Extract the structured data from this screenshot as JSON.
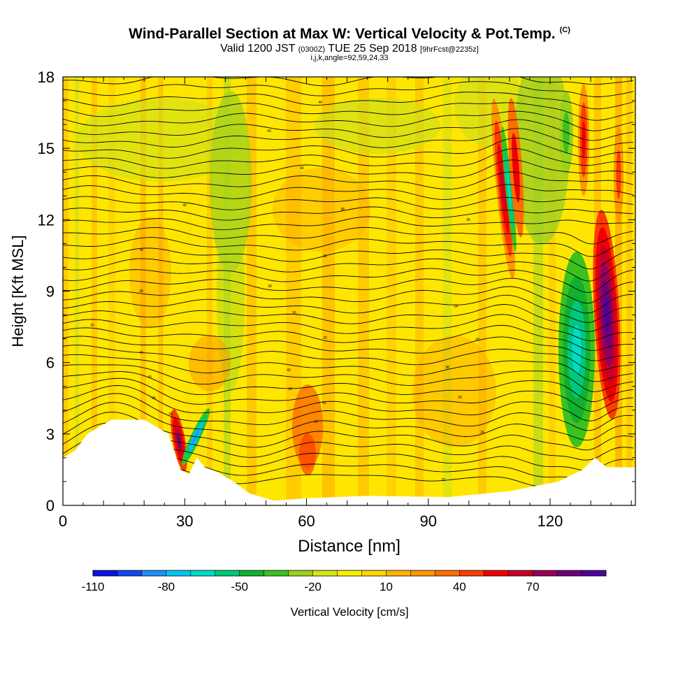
{
  "title": "Wind-Parallel Section at Max W: Vertical Velocity & Pot.Temp.",
  "title_mark": "(C)",
  "subtitle_main": "Valid 1200 JST",
  "subtitle_z": "(0300Z)",
  "subtitle_date": "TUE 25 Sep 2018",
  "subtitle_fcst": "[9hrFcst@2235z]",
  "subtitle2": "i,j,k,angle=92,59,24,33",
  "chart_data": {
    "type": "heatmap",
    "xlabel": "Distance [nm]",
    "ylabel": "Height [Kft MSL]",
    "xlim": [
      0,
      141
    ],
    "ylim": [
      0,
      18
    ],
    "x_ticks": [
      "0",
      "30",
      "60",
      "90",
      "120"
    ],
    "x_tick_values": [
      0,
      30,
      60,
      90,
      120
    ],
    "y_ticks": [
      "0",
      "3",
      "6",
      "9",
      "12",
      "15",
      "18"
    ],
    "y_tick_values": [
      0,
      3,
      6,
      9,
      12,
      15,
      18
    ],
    "colorbar_label": "Vertical Velocity [cm/s]",
    "colorbar_ticks": [
      "-110",
      "-80",
      "-50",
      "-20",
      "10",
      "40",
      "70"
    ],
    "colorbar_colors": [
      "#0a12e6",
      "#1447f0",
      "#1e90ff",
      "#00c8f0",
      "#00dcc8",
      "#00c87e",
      "#10b030",
      "#3cc21e",
      "#9bd21a",
      "#d4e614",
      "#fff000",
      "#ffd700",
      "#ffb400",
      "#ff9600",
      "#ff6e00",
      "#ff3c00",
      "#f00000",
      "#c80028",
      "#96005a",
      "#6e0078",
      "#50009b"
    ],
    "terrain_kft": [
      [
        0,
        2
      ],
      [
        3,
        2.3
      ],
      [
        6,
        3
      ],
      [
        12,
        3.6
      ],
      [
        20,
        3.6
      ],
      [
        26,
        3
      ],
      [
        29,
        1.5
      ],
      [
        31,
        1.3
      ],
      [
        33,
        2
      ],
      [
        35,
        1.6
      ],
      [
        38,
        1.4
      ],
      [
        42,
        1
      ],
      [
        46,
        0.5
      ],
      [
        52,
        0.2
      ],
      [
        60,
        0.3
      ],
      [
        75,
        0.4
      ],
      [
        95,
        0.35
      ],
      [
        110,
        0.6
      ],
      [
        122,
        1
      ],
      [
        128,
        1.5
      ],
      [
        131,
        2
      ],
      [
        134,
        1.6
      ],
      [
        141,
        1.6
      ]
    ],
    "isentrope_labels": [
      "44",
      "43",
      "42",
      "40",
      "38",
      "36",
      "34",
      "32",
      "30",
      "28",
      "26",
      "24",
      "22",
      "20"
    ]
  }
}
